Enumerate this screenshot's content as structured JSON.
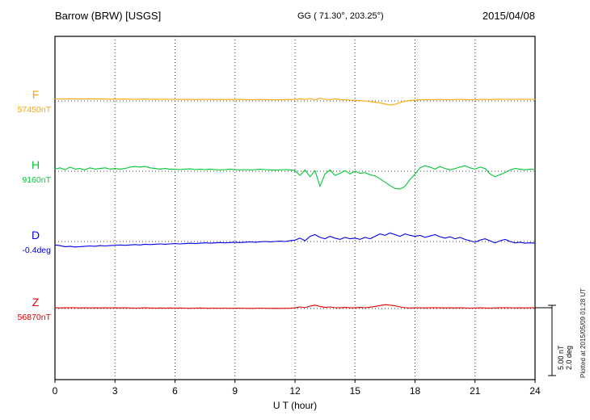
{
  "header": {
    "station": "Barrow (BRW)  [USGS]",
    "geo_coords": "GG ( 71.30°, 203.25°)",
    "date": "2015/04/08"
  },
  "sidebar_note": "Plotted at 2015/05/09 01:28 UT",
  "scale_bar": {
    "label_nt": "5.00 nT",
    "label_deg": "2.0 deg"
  },
  "chart_data": {
    "type": "line",
    "title": "Barrow (BRW) [USGS] magnetogram 2015/04/08",
    "xlabel": "U T (hour)",
    "ylabel": "",
    "xlim": [
      0,
      24
    ],
    "x_ticks": [
      0,
      3,
      6,
      9,
      12,
      15,
      18,
      21,
      24
    ],
    "grid": "dotted vertical gridlines at 3-hour ticks, dotted horizontal baseline per trace",
    "legend_position": "left of each trace",
    "sample_interval_hours": 0.25,
    "scale": {
      "bar_nT": 5.0,
      "bar_deg": 2.0
    },
    "series": [
      {
        "name": "F",
        "baseline_label": "57450nT",
        "baseline_value": 57450,
        "units": "nT",
        "color": "#FFA500",
        "offsets": [
          0.15,
          0.15,
          0.14,
          0.16,
          0.15,
          0.14,
          0.15,
          0.16,
          0.14,
          0.15,
          0.14,
          0.13,
          0.14,
          0.13,
          0.14,
          0.13,
          0.12,
          0.13,
          0.14,
          0.12,
          0.13,
          0.12,
          0.13,
          0.12,
          0.12,
          0.11,
          0.12,
          0.11,
          0.1,
          0.11,
          0.12,
          0.11,
          0.1,
          0.11,
          0.1,
          0.11,
          0.1,
          0.11,
          0.1,
          0.09,
          0.1,
          0.11,
          0.1,
          0.09,
          0.08,
          0.09,
          0.1,
          0.1,
          0.12,
          0.16,
          0.1,
          0.18,
          0.08,
          0.2,
          0.12,
          0.1,
          0.16,
          0.1,
          0.08,
          0.06,
          0.05,
          0.02,
          0.0,
          -0.04,
          -0.08,
          -0.14,
          -0.22,
          -0.3,
          -0.24,
          -0.12,
          -0.02,
          0.04,
          0.06,
          0.08,
          0.1,
          0.09,
          0.1,
          0.12,
          0.1,
          0.09,
          0.1,
          0.12,
          0.1,
          0.09,
          0.1,
          0.11,
          0.12,
          0.1,
          0.11,
          0.13,
          0.12,
          0.11,
          0.12,
          0.13,
          0.12,
          0.12,
          0.12
        ]
      },
      {
        "name": "H",
        "baseline_label": "9160nT",
        "baseline_value": 9160,
        "units": "nT",
        "color": "#00C832",
        "offsets": [
          0.15,
          0.25,
          0.1,
          0.3,
          0.15,
          0.2,
          0.1,
          0.25,
          0.15,
          0.2,
          0.25,
          0.15,
          0.2,
          0.15,
          0.2,
          0.3,
          0.35,
          0.3,
          0.35,
          0.25,
          0.2,
          0.15,
          0.2,
          0.15,
          0.15,
          0.12,
          0.15,
          0.18,
          0.12,
          0.15,
          0.12,
          0.15,
          0.12,
          0.1,
          0.12,
          0.15,
          0.12,
          0.1,
          0.12,
          0.1,
          0.12,
          0.15,
          0.12,
          0.1,
          0.08,
          0.1,
          0.12,
          0.1,
          0.05,
          -0.3,
          0.1,
          -0.4,
          0.05,
          -1.1,
          -0.2,
          0.1,
          -0.3,
          -0.15,
          0.05,
          -0.2,
          0.0,
          -0.15,
          -0.1,
          -0.25,
          -0.35,
          -0.55,
          -0.8,
          -1.05,
          -1.25,
          -1.3,
          -1.1,
          -0.6,
          -0.2,
          0.25,
          0.4,
          0.3,
          0.15,
          0.35,
          0.2,
          0.1,
          0.2,
          0.3,
          0.4,
          0.25,
          0.15,
          0.3,
          0.2,
          -0.2,
          -0.4,
          -0.25,
          -0.1,
          0.1,
          0.2,
          0.15,
          0.1,
          0.15,
          0.12
        ]
      },
      {
        "name": "D",
        "baseline_label": "-0.4deg",
        "baseline_value": -0.4,
        "units": "deg",
        "color": "#0000E6",
        "offsets": [
          -0.1,
          -0.12,
          -0.15,
          -0.14,
          -0.16,
          -0.15,
          -0.14,
          -0.13,
          -0.14,
          -0.12,
          -0.13,
          -0.12,
          -0.11,
          -0.1,
          -0.11,
          -0.1,
          -0.09,
          -0.1,
          -0.08,
          -0.09,
          -0.08,
          -0.07,
          -0.08,
          -0.07,
          -0.06,
          -0.07,
          -0.06,
          -0.05,
          -0.06,
          -0.05,
          -0.04,
          -0.05,
          -0.04,
          -0.03,
          -0.04,
          -0.03,
          -0.02,
          -0.03,
          -0.02,
          -0.01,
          -0.02,
          -0.01,
          0.0,
          -0.01,
          0.0,
          0.01,
          0.0,
          0.02,
          0.04,
          0.1,
          0.02,
          0.15,
          0.2,
          0.12,
          0.08,
          0.15,
          0.1,
          0.06,
          0.12,
          0.08,
          0.1,
          0.06,
          0.12,
          0.08,
          0.15,
          0.22,
          0.18,
          0.25,
          0.2,
          0.15,
          0.22,
          0.18,
          0.15,
          0.18,
          0.12,
          0.16,
          0.2,
          0.14,
          0.1,
          0.14,
          0.08,
          0.12,
          0.06,
          0.02,
          -0.02,
          0.04,
          0.08,
          0.02,
          -0.04,
          0.02,
          0.06,
          0.0,
          -0.04,
          -0.02,
          -0.05,
          -0.04,
          -0.05
        ]
      },
      {
        "name": "Z",
        "baseline_label": "56870nT",
        "baseline_value": 56870,
        "units": "nT",
        "color": "#E60000",
        "offsets": [
          0.05,
          0.04,
          0.05,
          0.06,
          0.05,
          0.04,
          0.05,
          0.04,
          0.05,
          0.04,
          0.05,
          0.04,
          0.05,
          0.04,
          0.05,
          0.04,
          0.03,
          0.04,
          0.05,
          0.04,
          0.03,
          0.04,
          0.03,
          0.04,
          0.03,
          0.04,
          0.03,
          0.02,
          0.03,
          0.04,
          0.03,
          0.02,
          0.03,
          0.02,
          0.03,
          0.02,
          0.02,
          0.03,
          0.02,
          0.01,
          0.02,
          0.03,
          0.02,
          0.01,
          0.02,
          0.01,
          0.02,
          0.02,
          0.05,
          0.12,
          0.06,
          0.18,
          0.25,
          0.15,
          0.08,
          0.12,
          0.06,
          0.05,
          0.08,
          0.05,
          0.05,
          0.08,
          0.06,
          0.1,
          0.15,
          0.22,
          0.28,
          0.25,
          0.2,
          0.12,
          0.06,
          0.04,
          0.05,
          0.06,
          0.04,
          0.05,
          0.06,
          0.05,
          0.04,
          0.05,
          0.04,
          0.05,
          0.04,
          0.03,
          0.04,
          0.05,
          0.04,
          0.03,
          0.04,
          0.05,
          0.06,
          0.05,
          0.04,
          0.05,
          0.04,
          0.05,
          0.05
        ]
      }
    ]
  }
}
